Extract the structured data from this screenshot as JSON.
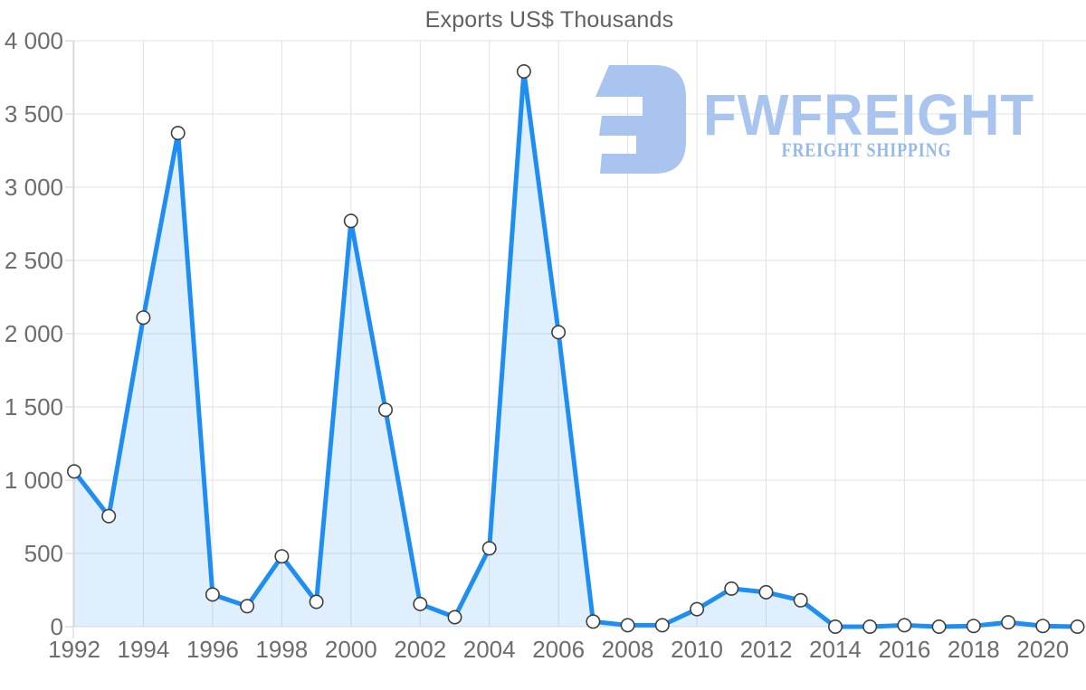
{
  "title": "Exports US$ Thousands",
  "watermark": {
    "brand": "FWFREIGHT",
    "tagline": "FREIGHT SHIPPING"
  },
  "chart_data": {
    "type": "area",
    "title": "Exports US$ Thousands",
    "x": [
      1992,
      1993,
      1994,
      1995,
      1996,
      1997,
      1998,
      1999,
      2000,
      2001,
      2002,
      2003,
      2004,
      2005,
      2006,
      2007,
      2008,
      2009,
      2010,
      2011,
      2012,
      2013,
      2014,
      2015,
      2016,
      2017,
      2018,
      2019,
      2020,
      2021
    ],
    "series": [
      {
        "name": "Exports US$ Thousands",
        "values": [
          1060,
          755,
          2110,
          3370,
          220,
          140,
          480,
          170,
          2770,
          1480,
          155,
          65,
          535,
          3790,
          2010,
          35,
          10,
          10,
          120,
          260,
          235,
          180,
          0,
          0,
          10,
          0,
          5,
          30,
          5,
          0
        ]
      }
    ],
    "ylim": [
      0,
      4000
    ],
    "ytick_step": 500,
    "ytick_labels": [
      "0",
      "500",
      "1 000",
      "1 500",
      "2 000",
      "2 500",
      "3 000",
      "3 500",
      "4 000"
    ],
    "xticks": [
      1992,
      1994,
      1996,
      1998,
      2000,
      2002,
      2004,
      2006,
      2008,
      2010,
      2012,
      2014,
      2016,
      2018,
      2020
    ],
    "grid": true,
    "legend": "none",
    "marker": "circle-white",
    "colors": {
      "line": "#1f8ef2",
      "fill": "rgba(31, 142, 242, 0.14)",
      "marker_fill": "#ffffff",
      "marker_stroke": "#3f3f3f",
      "grid": "#e1e1e1",
      "axis": "#d0d0d0",
      "tick_text": "#6d6d6d",
      "title_text": "#616161",
      "watermark": "#a9c4ef",
      "watermark_tagline": "#94b9ec"
    }
  }
}
